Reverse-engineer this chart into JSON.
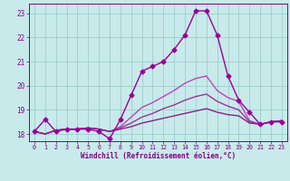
{
  "xlabel": "Windchill (Refroidissement éolien,°C)",
  "x_values": [
    0,
    1,
    2,
    3,
    4,
    5,
    6,
    7,
    8,
    9,
    10,
    11,
    12,
    13,
    14,
    15,
    16,
    17,
    18,
    19,
    20,
    21,
    22,
    23
  ],
  "lines": [
    {
      "y": [
        18.1,
        18.6,
        18.1,
        18.2,
        18.2,
        18.2,
        18.1,
        17.8,
        18.6,
        19.6,
        20.6,
        20.8,
        21.0,
        21.5,
        22.1,
        23.1,
        23.1,
        22.1,
        20.4,
        19.4,
        18.9,
        18.4,
        18.5,
        18.5
      ],
      "color": "#990099",
      "marker": "D",
      "linewidth": 1.0,
      "markersize": 2.5
    },
    {
      "y": [
        18.1,
        18.0,
        18.15,
        18.2,
        18.2,
        18.25,
        18.2,
        18.1,
        18.3,
        18.7,
        19.1,
        19.3,
        19.55,
        19.8,
        20.1,
        20.3,
        20.4,
        19.8,
        19.5,
        19.35,
        18.55,
        18.4,
        18.5,
        18.55
      ],
      "color": "#bb44bb",
      "marker": null,
      "linewidth": 1.0,
      "markersize": 0
    },
    {
      "y": [
        18.1,
        18.0,
        18.15,
        18.2,
        18.2,
        18.25,
        18.2,
        18.1,
        18.25,
        18.45,
        18.7,
        18.85,
        19.05,
        19.2,
        19.4,
        19.55,
        19.65,
        19.35,
        19.15,
        19.0,
        18.5,
        18.4,
        18.5,
        18.55
      ],
      "color": "#993399",
      "marker": null,
      "linewidth": 1.0,
      "markersize": 0
    },
    {
      "y": [
        18.1,
        18.0,
        18.15,
        18.2,
        18.2,
        18.25,
        18.2,
        18.1,
        18.2,
        18.3,
        18.45,
        18.55,
        18.65,
        18.75,
        18.85,
        18.95,
        19.05,
        18.9,
        18.8,
        18.75,
        18.45,
        18.4,
        18.5,
        18.55
      ],
      "color": "#882288",
      "marker": null,
      "linewidth": 1.0,
      "markersize": 0
    }
  ],
  "background_color": "#c8eaea",
  "grid_color": "#9ecece",
  "text_color": "#800080",
  "ylim": [
    17.7,
    23.4
  ],
  "yticks": [
    18,
    19,
    20,
    21,
    22,
    23
  ],
  "xticks": [
    0,
    1,
    2,
    3,
    4,
    5,
    6,
    7,
    8,
    9,
    10,
    11,
    12,
    13,
    14,
    15,
    16,
    17,
    18,
    19,
    20,
    21,
    22,
    23
  ],
  "figsize": [
    3.2,
    2.0
  ],
  "dpi": 100
}
